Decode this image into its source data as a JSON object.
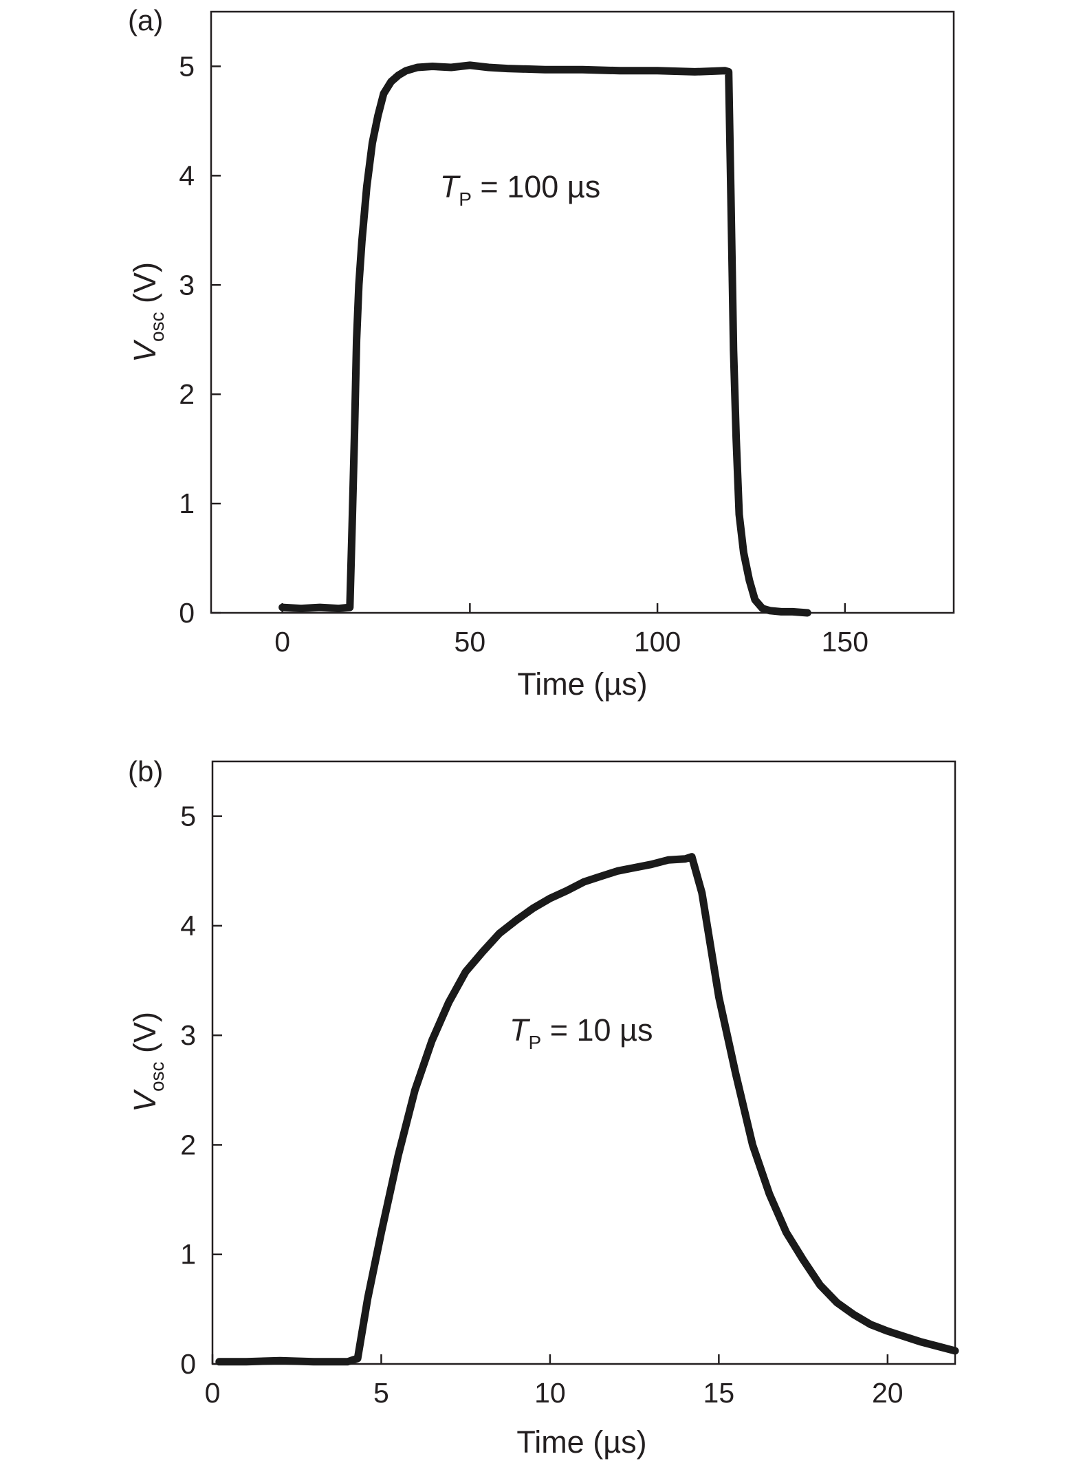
{
  "chart_data": [
    {
      "type": "line",
      "panel_label": "(a)",
      "xlabel": "Time (µs)",
      "ylabel": {
        "main": "V",
        "sub": "osc",
        "unit": " (V)"
      },
      "xlim": [
        -19,
        179
      ],
      "ylim": [
        0,
        5.5
      ],
      "xticks": [
        0,
        50,
        100,
        150
      ],
      "yticks": [
        0,
        1,
        2,
        3,
        4,
        5
      ],
      "annotation": {
        "main": "T",
        "sub": "P",
        "rest": " = 100 µs",
        "x": 42,
        "y": 3.8
      },
      "series": [
        {
          "x": [
            0,
            5,
            10,
            15,
            18,
            18.6,
            19.2,
            19.8,
            20.4,
            21.2,
            22.5,
            24,
            25.5,
            27,
            29,
            31,
            33,
            36,
            40,
            45,
            50,
            55,
            60,
            70,
            80,
            90,
            100,
            110,
            118,
            119,
            119.6,
            120.3,
            121,
            121.8,
            123,
            124.5,
            126,
            128,
            130,
            133,
            136,
            140
          ],
          "y": [
            0.05,
            0.04,
            0.05,
            0.04,
            0.05,
            0.8,
            1.6,
            2.5,
            3.0,
            3.4,
            3.9,
            4.3,
            4.55,
            4.75,
            4.86,
            4.92,
            4.96,
            4.99,
            5.0,
            4.99,
            5.01,
            4.99,
            4.98,
            4.97,
            4.97,
            4.96,
            4.96,
            4.95,
            4.96,
            4.95,
            3.8,
            2.4,
            1.6,
            0.9,
            0.55,
            0.3,
            0.12,
            0.04,
            0.02,
            0.01,
            0.01,
            0.0
          ]
        }
      ]
    },
    {
      "type": "line",
      "panel_label": "(b)",
      "xlabel": "Time (µs)",
      "ylabel": {
        "main": "V",
        "sub": "osc",
        "unit": " (V)"
      },
      "xlim": [
        0,
        22
      ],
      "ylim": [
        0,
        5.5
      ],
      "xticks": [
        0,
        5,
        10,
        15,
        20
      ],
      "yticks": [
        0,
        1,
        2,
        3,
        4,
        5
      ],
      "annotation": {
        "main": "T",
        "sub": "P",
        "rest": " = 10 µs",
        "x": 8.8,
        "y": 2.95
      },
      "series": [
        {
          "x": [
            0.2,
            1,
            2,
            3,
            4,
            4.3,
            4.6,
            5,
            5.5,
            6,
            6.5,
            7,
            7.5,
            8,
            8.5,
            9,
            9.5,
            10,
            10.5,
            11,
            11.5,
            12,
            12.5,
            13,
            13.5,
            14,
            14.2,
            14.5,
            15,
            15.5,
            16,
            16.5,
            17,
            17.5,
            18,
            18.5,
            19,
            19.5,
            20,
            20.5,
            21,
            21.5,
            22
          ],
          "y": [
            0.02,
            0.02,
            0.03,
            0.02,
            0.02,
            0.05,
            0.6,
            1.2,
            1.9,
            2.5,
            2.95,
            3.3,
            3.58,
            3.76,
            3.93,
            4.05,
            4.16,
            4.25,
            4.32,
            4.4,
            4.45,
            4.5,
            4.53,
            4.56,
            4.6,
            4.61,
            4.63,
            4.3,
            3.35,
            2.65,
            2.0,
            1.55,
            1.2,
            0.95,
            0.72,
            0.56,
            0.45,
            0.36,
            0.3,
            0.25,
            0.2,
            0.16,
            0.12
          ]
        }
      ]
    }
  ]
}
